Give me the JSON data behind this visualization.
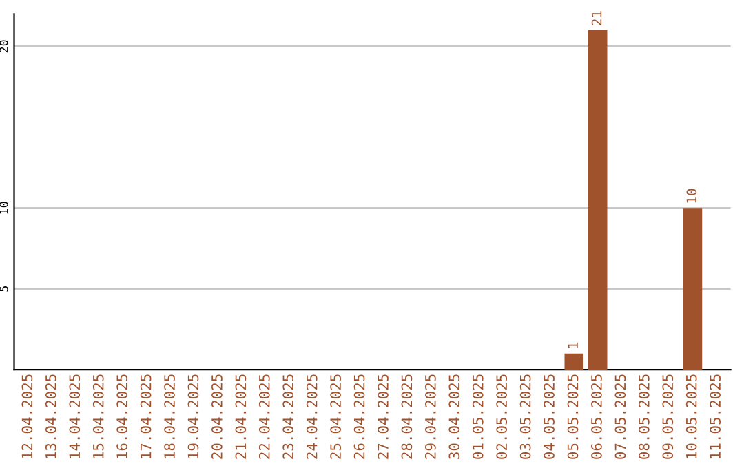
{
  "chart_data": {
    "type": "bar",
    "categories": [
      "12.04.2025",
      "13.04.2025",
      "14.04.2025",
      "15.04.2025",
      "16.04.2025",
      "17.04.2025",
      "18.04.2025",
      "19.04.2025",
      "20.04.2025",
      "21.04.2025",
      "22.04.2025",
      "23.04.2025",
      "24.04.2025",
      "25.04.2025",
      "26.04.2025",
      "27.04.2025",
      "28.04.2025",
      "29.04.2025",
      "30.04.2025",
      "01.05.2025",
      "02.05.2025",
      "03.05.2025",
      "04.05.2025",
      "05.05.2025",
      "06.05.2025",
      "07.05.2025",
      "08.05.2025",
      "09.05.2025",
      "10.05.2025",
      "11.05.2025"
    ],
    "series": [
      {
        "color": "#a0522d",
        "values": [
          0,
          0,
          0,
          0,
          0,
          0,
          0,
          0,
          0,
          0,
          0,
          0,
          0,
          0,
          0,
          0,
          0,
          0,
          0,
          0,
          0,
          0,
          0,
          1,
          21,
          0,
          0,
          0,
          10,
          0
        ],
        "value_labels": [
          null,
          null,
          null,
          null,
          null,
          null,
          null,
          null,
          null,
          null,
          null,
          null,
          null,
          null,
          null,
          null,
          null,
          null,
          null,
          null,
          null,
          null,
          null,
          "1",
          "21",
          null,
          null,
          null,
          "10",
          null
        ]
      }
    ],
    "ylim": [
      0,
      22
    ],
    "yticks": [
      5,
      10,
      20
    ],
    "grid": "y",
    "legend": false
  }
}
